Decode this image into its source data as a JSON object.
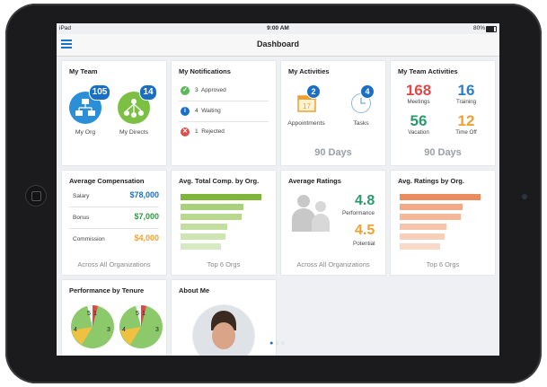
{
  "status": {
    "carrier": "iPad",
    "time": "9:00 AM",
    "battery": "80%"
  },
  "nav": {
    "title": "Dashboard"
  },
  "colors": {
    "blue": "#1a6fc4",
    "green": "#5cb85c",
    "red": "#d9534f",
    "orange": "#f0a030",
    "teal": "#2b9a6d"
  },
  "my_team": {
    "title": "My Team",
    "org_count": "105",
    "org_label": "My Org",
    "directs_count": "14",
    "directs_label": "My Directs"
  },
  "notifications": {
    "title": "My Notifications",
    "items": [
      {
        "count": "3",
        "label": "Approved",
        "icon": "check-icon"
      },
      {
        "count": "4",
        "label": "Waiting",
        "icon": "info-icon"
      },
      {
        "count": "1",
        "label": "Rejected",
        "icon": "x-icon"
      }
    ]
  },
  "activities": {
    "title": "My Activities",
    "appointments_count": "2",
    "appointments_label": "Appointments",
    "calendar_day": "17",
    "tasks_count": "4",
    "tasks_label": "Tasks",
    "period": "90 Days"
  },
  "team_activities": {
    "title": "My Team Activities",
    "meetings": "168",
    "meetings_label": "Meetings",
    "training": "16",
    "training_label": "Training",
    "vacation": "56",
    "vacation_label": "Vacation",
    "timeoff": "12",
    "timeoff_label": "Time Off",
    "period": "90 Days"
  },
  "avg_comp": {
    "title": "Average Compensation",
    "rows": [
      {
        "label": "Salary",
        "value": "$78,000"
      },
      {
        "label": "Bonus",
        "value": "$7,000"
      },
      {
        "label": "Commission",
        "value": "$4,000"
      }
    ],
    "footer": "Across All Organizations"
  },
  "total_comp": {
    "title": "Avg. Total Comp. by Org.",
    "footer": "Top 6 Orgs",
    "bars": [
      1.0,
      0.78,
      0.76,
      0.58,
      0.56,
      0.5
    ]
  },
  "ratings": {
    "title": "Average Ratings",
    "performance": "4.8",
    "performance_label": "Performance",
    "potential": "4.5",
    "potential_label": "Potential",
    "footer": "Across All Organizations"
  },
  "ratings_org": {
    "title": "Avg. Ratings by Org.",
    "footer": "Top 6 Orgs",
    "bars": [
      1.0,
      0.78,
      0.76,
      0.58,
      0.56,
      0.5
    ]
  },
  "tenure": {
    "title": "Performance by Tenure",
    "pies": [
      {
        "a": "5",
        "b": "1",
        "c": "3",
        "d": "4"
      },
      {
        "a": "5",
        "b": "1",
        "c": "3",
        "d": "4"
      }
    ]
  },
  "about": {
    "title": "About Me"
  }
}
